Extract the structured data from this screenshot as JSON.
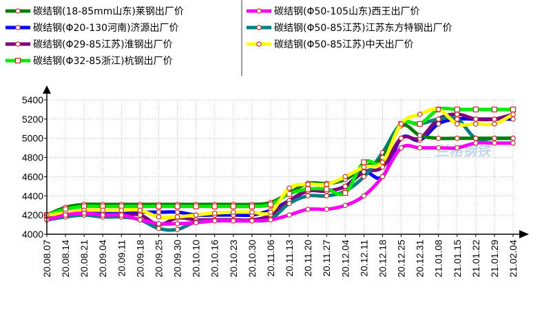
{
  "chart_data": {
    "type": "line",
    "title": "",
    "xlabel": "",
    "ylabel": "",
    "ylim": [
      4000,
      5400
    ],
    "yticks": [
      4000,
      4200,
      4400,
      4600,
      4800,
      5000,
      5200,
      5400
    ],
    "grid": true,
    "legend_placement": "top",
    "categories": [
      "20.08.07",
      "20.08.14",
      "20.08.21",
      "20.09.04",
      "20.09.11",
      "20.09.18",
      "20.09.25",
      "20.09.30",
      "20.10.10",
      "20.10.16",
      "20.10.23",
      "20.10.30",
      "20.11.06",
      "20.11.13",
      "20.11.20",
      "20.11.27",
      "20.12.04",
      "20.12.11",
      "20.12.18",
      "20.12.25",
      "20.12.31",
      "21.01.08",
      "21.01.15",
      "21.01.22",
      "21.01.29",
      "21.02.04"
    ],
    "series": [
      {
        "name": "碳结钢(18-85mm山东)莱钢出厂价",
        "color": "#008000",
        "values": [
          4200,
          4280,
          4310,
          4310,
          4310,
          4310,
          4310,
          4310,
          4310,
          4310,
          4310,
          4310,
          4330,
          4430,
          4530,
          4530,
          4570,
          4700,
          4800,
          5130,
          5030,
          5000,
          5000,
          5000,
          5000,
          5000
        ]
      },
      {
        "name": "碳结钢(Φ20-130河南)济源出厂价",
        "color": "#0000ff",
        "values": [
          4150,
          4200,
          4230,
          4230,
          4230,
          4230,
          4230,
          4230,
          4200,
          4200,
          4200,
          4200,
          4250,
          4350,
          4450,
          4450,
          4500,
          4650,
          4600,
          5000,
          4980,
          5150,
          5200,
          5200,
          5200,
          5200
        ]
      },
      {
        "name": "碳结钢(Φ29-85江苏)淮钢出厂价",
        "color": "#800080",
        "values": [
          4170,
          4200,
          4200,
          4200,
          4200,
          4200,
          4100,
          4170,
          4150,
          4150,
          4150,
          4150,
          4200,
          4350,
          4450,
          4450,
          4500,
          4650,
          4700,
          5000,
          5000,
          5200,
          5250,
          5200,
          5200,
          5250
        ]
      },
      {
        "name": "碳结钢(Φ32-85浙江)杭钢出厂价",
        "color": "#00ee00",
        "values": [
          4200,
          4260,
          4290,
          4290,
          4290,
          4290,
          4290,
          4290,
          4290,
          4290,
          4290,
          4290,
          4310,
          4420,
          4470,
          4470,
          4430,
          4750,
          4750,
          5150,
          5150,
          5300,
          5300,
          5300,
          5300,
          5300
        ]
      },
      {
        "name": "碳结钢(Φ50-105山东)西王出厂价",
        "color": "#ff00ff",
        "values": [
          4150,
          4200,
          4220,
          4200,
          4200,
          4150,
          4110,
          4110,
          4120,
          4140,
          4140,
          4140,
          4150,
          4200,
          4260,
          4260,
          4300,
          4400,
          4600,
          4900,
          4900,
          4900,
          4900,
          4950,
          4950,
          4950
        ]
      },
      {
        "name": "碳结钢(Φ50-85江苏)江苏东方特钢出厂价",
        "color": "#008080",
        "values": [
          4150,
          4180,
          4200,
          4180,
          4180,
          4150,
          4060,
          4050,
          4130,
          4140,
          4140,
          4140,
          4160,
          4320,
          4400,
          4400,
          4450,
          4600,
          4850,
          5150,
          5150,
          5200,
          5200,
          5000,
          5000,
          5000
        ]
      },
      {
        "name": "碳结钢(Φ50-85江苏)中天出厂价",
        "color": "#ffff00",
        "values": [
          4200,
          4220,
          4250,
          4250,
          4250,
          4250,
          4180,
          4180,
          4200,
          4220,
          4230,
          4230,
          4230,
          4480,
          4520,
          4520,
          4600,
          4700,
          4750,
          5150,
          5250,
          5300,
          5150,
          5150,
          5150,
          5250
        ]
      }
    ]
  }
}
